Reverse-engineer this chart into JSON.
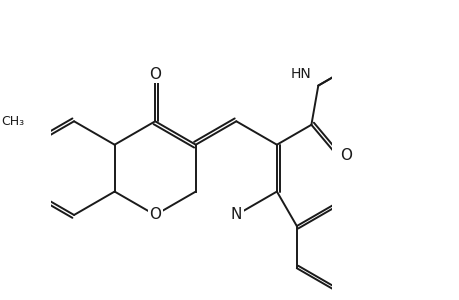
{
  "background_color": "#ffffff",
  "line_color": "#1a1a1a",
  "line_width": 1.4,
  "font_size": 10,
  "figsize": [
    4.6,
    3.0
  ],
  "dpi": 100,
  "xlim": [
    -0.5,
    5.5
  ],
  "ylim": [
    -2.8,
    3.0
  ]
}
